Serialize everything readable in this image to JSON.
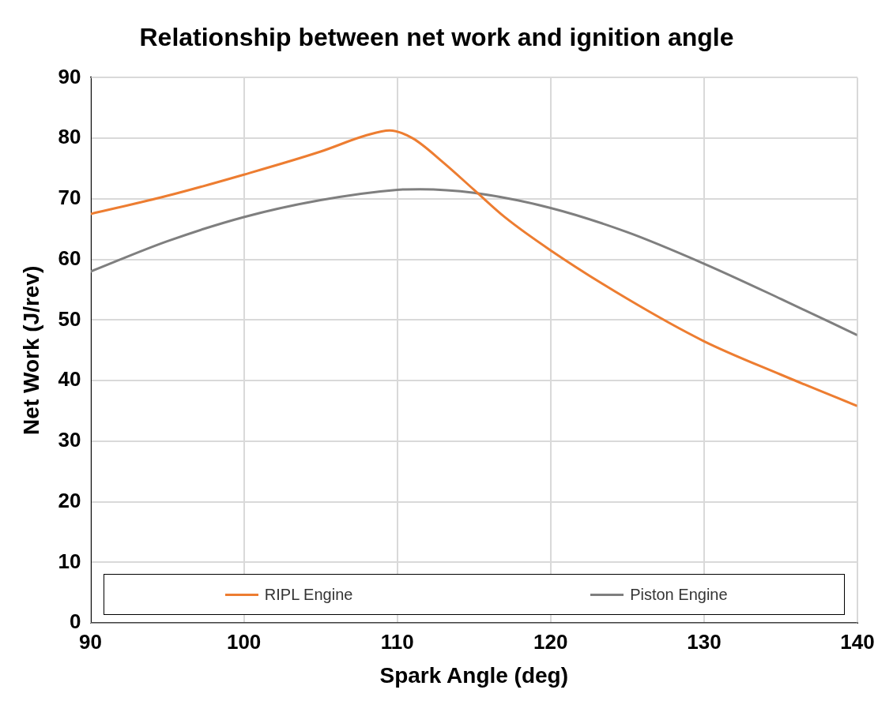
{
  "chart_data": {
    "type": "line",
    "title": "Relationship between net work and ignition angle",
    "xlabel": "Spark Angle (deg)",
    "ylabel": "Net Work (J/rev)",
    "xlim": [
      90,
      140
    ],
    "xticks": [
      90,
      100,
      110,
      120,
      130,
      140
    ],
    "ylim": [
      0,
      90
    ],
    "yticks": [
      0,
      10,
      20,
      30,
      40,
      50,
      60,
      70,
      80,
      90
    ],
    "grid": true,
    "legend": "bottom",
    "marker": "none",
    "line_style": "solid",
    "series": [
      {
        "name": "RIPL Engine",
        "color": "#ed7d31",
        "x": [
          90,
          95,
          100,
          105,
          108,
          109.5,
          111,
          113,
          115,
          117,
          120,
          125,
          130,
          135,
          140
        ],
        "values": [
          67.5,
          70.5,
          74,
          77.8,
          80.5,
          81.3,
          80,
          76,
          71.5,
          67,
          61.5,
          53.5,
          46.5,
          41,
          35.8
        ]
      },
      {
        "name": "Piston Engine",
        "color": "#7f7f7f",
        "x": [
          90,
          95,
          100,
          105,
          110,
          111.5,
          115,
          120,
          125,
          130,
          135,
          140
        ],
        "values": [
          58,
          63,
          67,
          69.8,
          71.5,
          71.6,
          71,
          68.5,
          64.5,
          59.3,
          53.5,
          47.5
        ]
      }
    ]
  }
}
